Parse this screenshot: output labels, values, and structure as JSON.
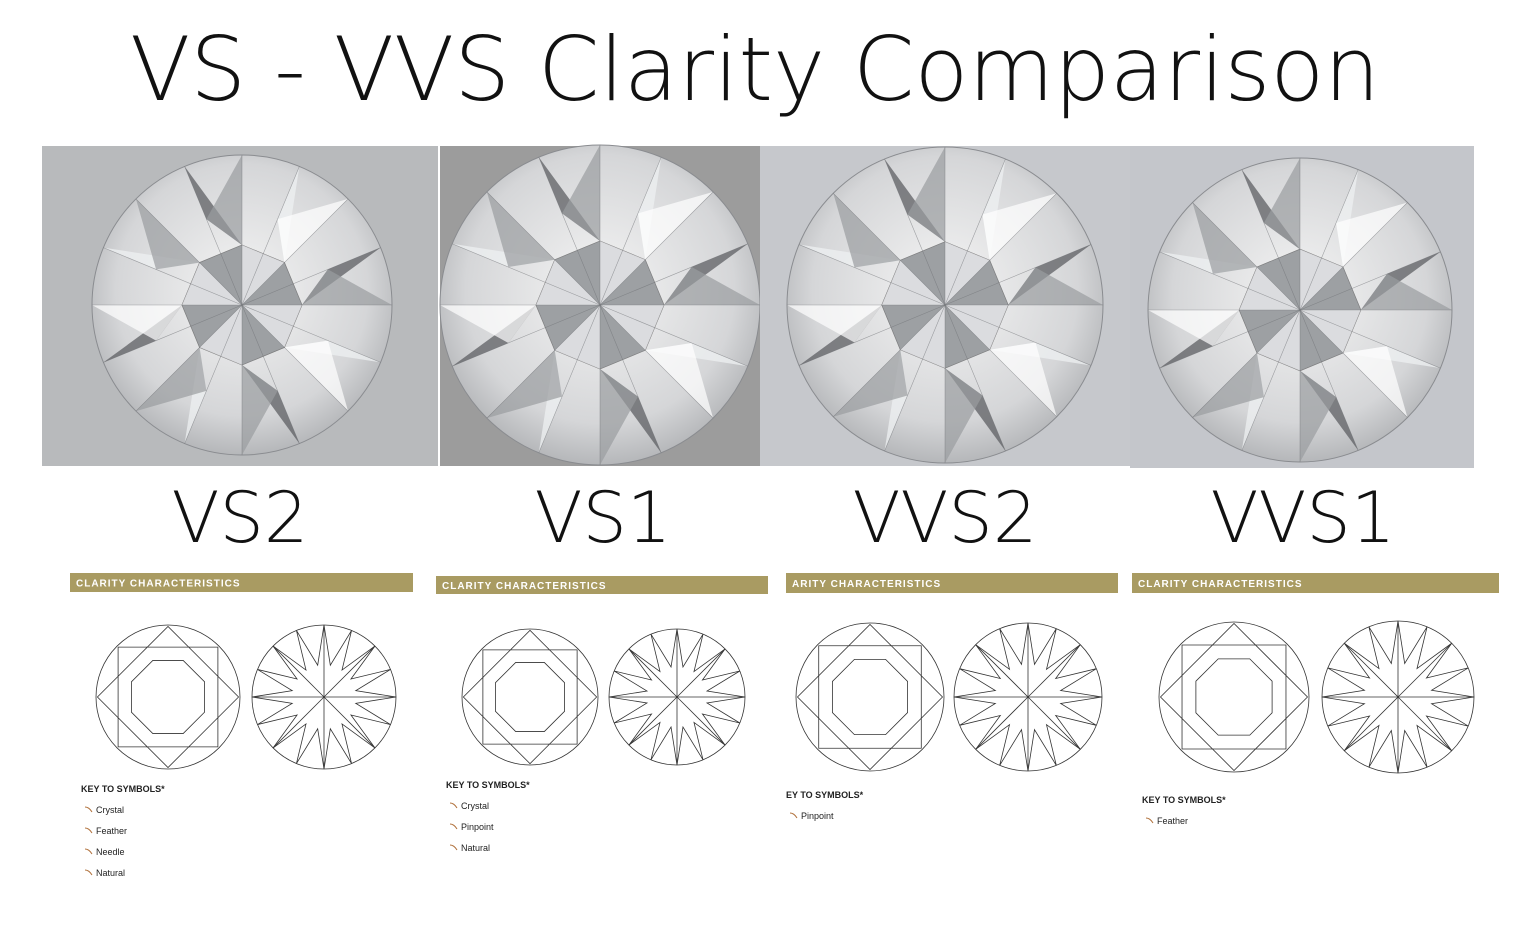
{
  "header": {
    "title": "VS - VVS Clarity Comparison"
  },
  "grades": [
    {
      "name": "VS2",
      "plot_title": "CLARITY CHARACTERISTICS",
      "key_title": "KEY TO SYMBOLS*",
      "symbols": [
        "Crystal",
        "Feather",
        "Needle",
        "Natural"
      ]
    },
    {
      "name": "VS1",
      "plot_title": "CLARITY CHARACTERISTICS",
      "key_title": "KEY TO SYMBOLS*",
      "symbols": [
        "Crystal",
        "Pinpoint",
        "Natural"
      ]
    },
    {
      "name": "VVS2",
      "plot_title": "ARITY CHARACTERISTICS",
      "key_title": "EY TO SYMBOLS*",
      "symbols": [
        "Pinpoint"
      ]
    },
    {
      "name": "VVS1",
      "plot_title": "CLARITY CHARACTERISTICS",
      "key_title": "KEY TO SYMBOLS*",
      "symbols": [
        "Feather"
      ]
    }
  ]
}
